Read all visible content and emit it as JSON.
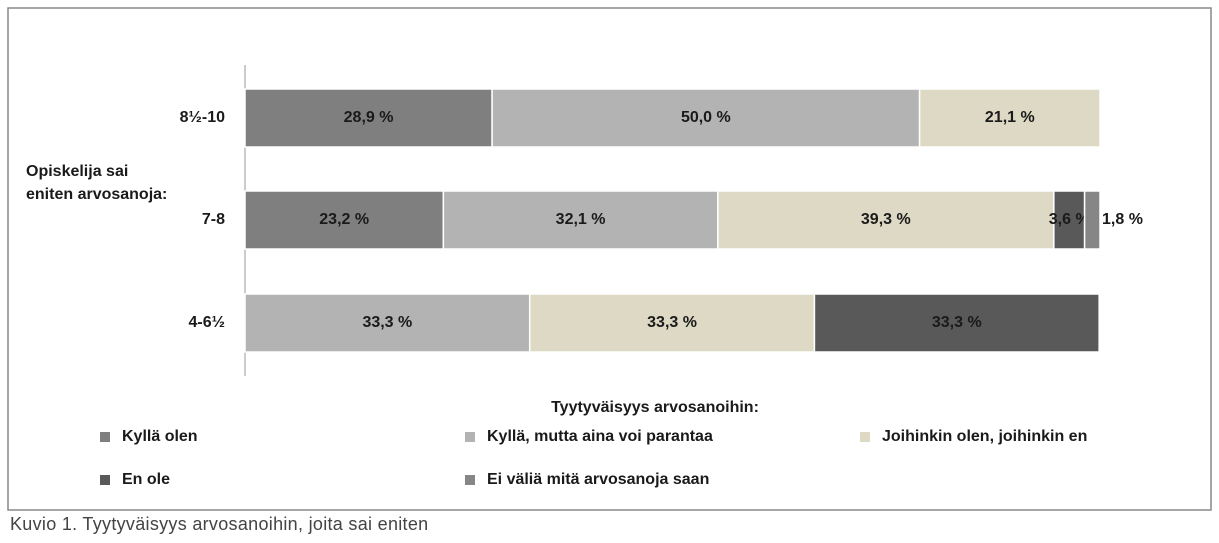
{
  "chart_data": {
    "type": "stacked-barh",
    "categories": [
      "8½-10",
      "7-8",
      "4-6½"
    ],
    "y_label": "Opiskelija sai eniten arvosanoja:",
    "x_label": "Tyytyväisyys arvosanoihin:",
    "caption": "Kuvio 1. Tyytyväisyys arvosanoihin, joita sai eniten",
    "xlim": [
      0,
      100
    ],
    "series": [
      {
        "name": "Kyllä olen",
        "color": "#7f7f7f",
        "values": [
          28.9,
          23.2,
          null
        ],
        "value_labels": [
          "28,9 %",
          "23,2 %",
          null
        ]
      },
      {
        "name": "Kyllä, mutta aina voi parantaa",
        "color": "#b3b3b3",
        "values": [
          50.0,
          32.1,
          33.3
        ],
        "value_labels": [
          "50,0 %",
          "32,1 %",
          "33,3 %"
        ]
      },
      {
        "name": "Joihinkin olen, joihinkin en",
        "color": "#ddd9c4",
        "values": [
          21.1,
          39.3,
          33.3
        ],
        "value_labels": [
          "21,1 %",
          "39,3 %",
          "33,3 %"
        ]
      },
      {
        "name": "En ole",
        "color": "#595959",
        "values": [
          null,
          3.6,
          33.3
        ],
        "value_labels": [
          null,
          "3,6 %",
          "33,3 %"
        ]
      },
      {
        "name": "Ei väliä mitä arvosanoja saan",
        "color": "#868686",
        "values": [
          null,
          1.8,
          null
        ],
        "value_labels": [
          null,
          "1,8 %",
          null
        ]
      }
    ]
  }
}
